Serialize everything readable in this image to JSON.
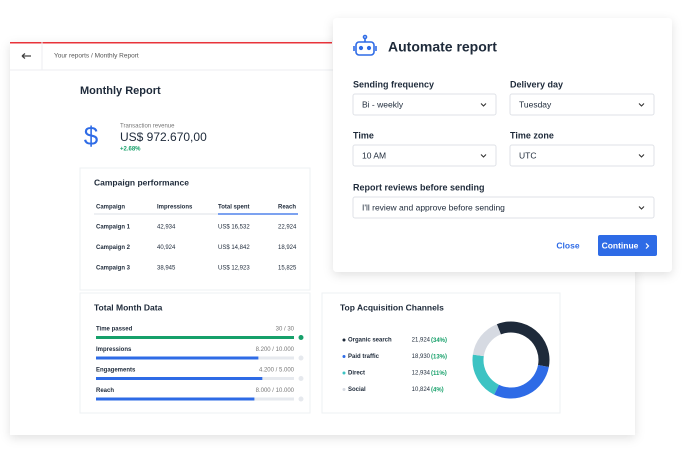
{
  "breadcrumb": "Your reports / Monthly Report",
  "report": {
    "title": "Monthly Report",
    "revenue": {
      "label": "Transaction revenue",
      "value": "US$ 972.670,00",
      "change": "+2.68%"
    },
    "campaign": {
      "title": "Campaign performance",
      "headers": [
        "Campaign",
        "Impressions",
        "Total spent",
        "Reach"
      ],
      "rows": [
        [
          "Campaign 1",
          "42,934",
          "US$ 16,532",
          "22,924"
        ],
        [
          "Campaign 2",
          "40,924",
          "US$ 14,842",
          "18,924"
        ],
        [
          "Campaign 3",
          "38,945",
          "US$ 12,923",
          "15,825"
        ]
      ]
    },
    "month": {
      "title": "Total Month Data",
      "items": [
        {
          "label": "Time passed",
          "value_label": "30 / 30",
          "value": 30,
          "max": 30,
          "color": "#16a06a"
        },
        {
          "label": "Impressions",
          "value_label": "8.200 / 10.000",
          "value": 8200,
          "max": 10000,
          "color": "#2e6be6"
        },
        {
          "label": "Engagements",
          "value_label": "4.200 / 5.000",
          "value": 4200,
          "max": 5000,
          "color": "#2e6be6"
        },
        {
          "label": "Reach",
          "value_label": "8.000 / 10.000",
          "value": 8000,
          "max": 10000,
          "color": "#2e6be6"
        }
      ]
    },
    "channels": {
      "title": "Top Acquisition Channels",
      "items": [
        {
          "name": "Organic search",
          "value": 21924,
          "label": "21,924",
          "share": "34%",
          "color": "#1e2a3a"
        },
        {
          "name": "Paid traffic",
          "value": 18930,
          "label": "18,930",
          "share": "13%",
          "color": "#2e6be6"
        },
        {
          "name": "Direct",
          "value": 12934,
          "label": "12,934",
          "share": "11%",
          "color": "#3cc3c3"
        },
        {
          "name": "Social",
          "value": 10824,
          "label": "10,824",
          "share": "4%",
          "color": "#d6dae2"
        }
      ]
    }
  },
  "modal": {
    "title": "Automate report",
    "fields": [
      {
        "label": "Sending frequency",
        "value": "Bi - weekly"
      },
      {
        "label": "Delivery day",
        "value": "Tuesday"
      },
      {
        "label": "Time",
        "value": "10 AM"
      },
      {
        "label": "Time zone",
        "value": "UTC"
      },
      {
        "label": "Report reviews before sending",
        "value": "I'll review and approve before sending"
      }
    ],
    "close": "Close",
    "continue": "Continue"
  }
}
